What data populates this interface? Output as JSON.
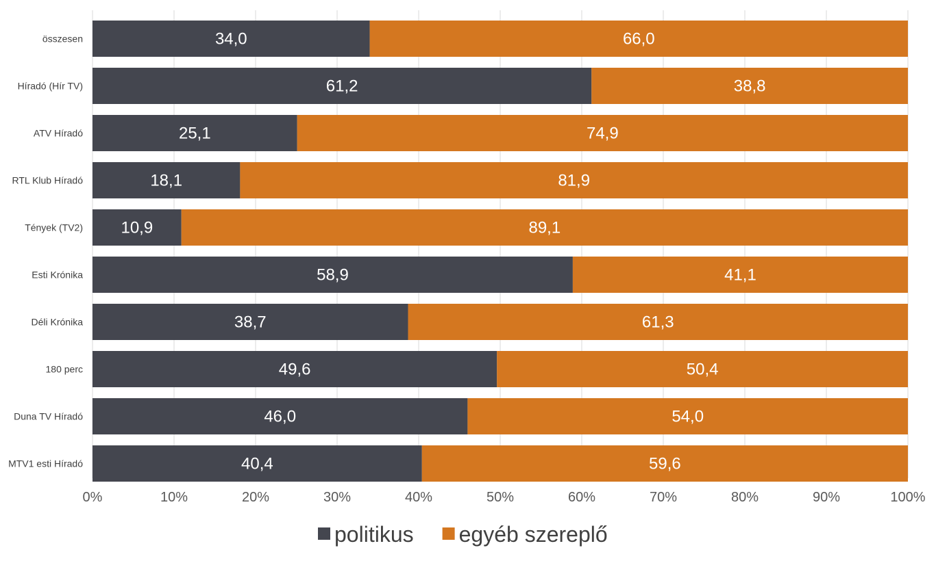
{
  "chart_data": {
    "type": "bar",
    "orientation": "horizontal",
    "stacked": "percent",
    "categories": [
      "összesen",
      "Híradó (Hír TV)",
      "ATV Híradó",
      "RTL Klub Híradó",
      "Tények (TV2)",
      "Esti Krónika",
      "Déli Krónika",
      "180 perc",
      "Duna TV Híradó",
      "MTV1 esti Híradó"
    ],
    "series": [
      {
        "name": "politikus",
        "color": "#44464f",
        "values": [
          34.0,
          61.2,
          25.1,
          18.1,
          10.9,
          58.9,
          38.7,
          49.6,
          46.0,
          40.4
        ],
        "labels": [
          "34,0",
          "61,2",
          "25,1",
          "18,1",
          "10,9",
          "58,9",
          "38,7",
          "49,6",
          "46,0",
          "40,4"
        ]
      },
      {
        "name": "egyéb szereplő",
        "color": "#d47720",
        "values": [
          66.0,
          38.8,
          74.9,
          81.9,
          89.1,
          41.1,
          61.3,
          50.4,
          54.0,
          59.6
        ],
        "labels": [
          "66,0",
          "38,8",
          "74,9",
          "81,9",
          "89,1",
          "41,1",
          "61,3",
          "50,4",
          "54,0",
          "59,6"
        ]
      }
    ],
    "xlim": [
      0,
      100
    ],
    "xticks": [
      "0%",
      "10%",
      "20%",
      "30%",
      "40%",
      "50%",
      "60%",
      "70%",
      "80%",
      "90%",
      "100%"
    ],
    "grid": true,
    "legend_position": "bottom",
    "title": "",
    "xlabel": "",
    "ylabel": ""
  }
}
